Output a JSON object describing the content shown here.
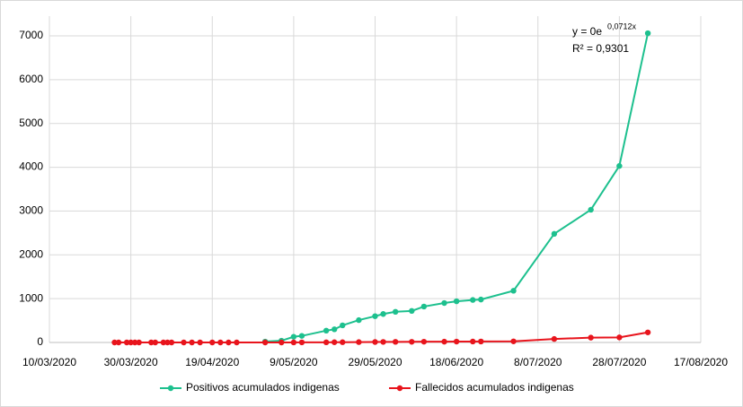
{
  "chart_data": {
    "type": "line",
    "x": [
      "2020-03-26",
      "2020-03-27",
      "2020-03-29",
      "2020-03-30",
      "2020-03-31",
      "2020-04-01",
      "2020-04-04",
      "2020-04-05",
      "2020-04-07",
      "2020-04-08",
      "2020-04-09",
      "2020-04-12",
      "2020-04-14",
      "2020-04-16",
      "2020-04-19",
      "2020-04-21",
      "2020-04-23",
      "2020-04-25",
      "2020-05-02",
      "2020-05-06",
      "2020-05-09",
      "2020-05-11",
      "2020-05-17",
      "2020-05-19",
      "2020-05-21",
      "2020-05-25",
      "2020-05-29",
      "2020-05-31",
      "2020-06-03",
      "2020-06-07",
      "2020-06-10",
      "2020-06-15",
      "2020-06-18",
      "2020-06-22",
      "2020-06-24",
      "2020-07-02",
      "2020-07-12",
      "2020-07-21",
      "2020-07-28",
      "2020-08-04"
    ],
    "series": [
      {
        "name": "Positivos acumulados indigenas",
        "color": "#1dc08e",
        "values": [
          null,
          null,
          null,
          null,
          null,
          null,
          null,
          null,
          null,
          null,
          null,
          null,
          null,
          null,
          null,
          null,
          null,
          null,
          20,
          40,
          130,
          150,
          270,
          300,
          390,
          510,
          600,
          650,
          700,
          720,
          820,
          900,
          940,
          970,
          980,
          1180,
          2480,
          3030,
          4030,
          7060
        ]
      },
      {
        "name": "Fallecidos acumulados indigenas",
        "color": "#e8141c",
        "values": [
          0,
          0,
          0,
          0,
          0,
          0,
          0,
          0,
          0,
          0,
          0,
          0,
          0,
          0,
          0,
          0,
          0,
          0,
          0,
          0,
          1,
          2,
          3,
          5,
          6,
          8,
          10,
          12,
          14,
          15,
          17,
          18,
          20,
          21,
          22,
          25,
          80,
          110,
          115,
          230
        ]
      }
    ],
    "xlim": [
      "2020-03-10",
      "2020-08-17"
    ],
    "xticks": [
      {
        "value": "2020-03-10",
        "label": "10/03/2020"
      },
      {
        "value": "2020-03-30",
        "label": "30/03/2020"
      },
      {
        "value": "2020-04-19",
        "label": "19/04/2020"
      },
      {
        "value": "2020-05-09",
        "label": "9/05/2020"
      },
      {
        "value": "2020-05-29",
        "label": "29/05/2020"
      },
      {
        "value": "2020-06-18",
        "label": "18/06/2020"
      },
      {
        "value": "2020-07-08",
        "label": "8/07/2020"
      },
      {
        "value": "2020-07-28",
        "label": "28/07/2020"
      },
      {
        "value": "2020-08-17",
        "label": "17/08/2020"
      }
    ],
    "ylim": [
      0,
      7000
    ],
    "yticks": [
      0,
      1000,
      2000,
      3000,
      4000,
      5000,
      6000,
      7000
    ],
    "grid": true,
    "legend": "bottom",
    "trendline": {
      "equation": "y = 0e",
      "exponent": "0,0712x",
      "r2": "R² = 0,9301"
    }
  }
}
